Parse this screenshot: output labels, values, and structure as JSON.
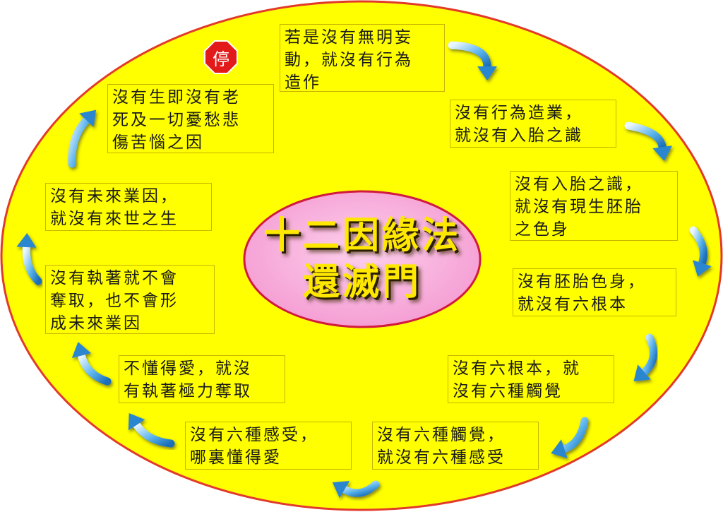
{
  "diagram": {
    "title_line1": "十二因緣法",
    "title_line2": "還滅門",
    "stop_sign": "停",
    "colors": {
      "background": "#ffff00",
      "border": "#e23a2a",
      "center": "#f7a8d8",
      "title": "#ffe800",
      "arrow": "#3a9bd8"
    },
    "boxes": [
      {
        "lines": [
          "若是沒有無明妄",
          "動，就沒有行為",
          "造作"
        ]
      },
      {
        "lines": [
          "沒有行為造業，",
          "就沒有入胎之識"
        ]
      },
      {
        "lines": [
          "沒有入胎之識，",
          "就沒有現生胚胎",
          "之色身"
        ]
      },
      {
        "lines": [
          "沒有胚胎色身，",
          "就沒有六根本"
        ]
      },
      {
        "lines": [
          "沒有六根本，就",
          "沒有六種觸覺"
        ]
      },
      {
        "lines": [
          "沒有六種觸覺，",
          "就沒有六種感受"
        ]
      },
      {
        "lines": [
          "沒有六種感受，",
          "哪裏懂得愛"
        ]
      },
      {
        "lines": [
          "不懂得愛，就沒",
          "有執著極力奪取"
        ]
      },
      {
        "lines": [
          "沒有執著就不會",
          "奪取，也不會形",
          "成未來業因"
        ]
      },
      {
        "lines": [
          "沒有未來業因，",
          "就沒有來世之生"
        ]
      },
      {
        "lines": [
          "沒有生即沒有老",
          "死及一切憂愁悲",
          "傷苦惱之因"
        ]
      }
    ]
  }
}
